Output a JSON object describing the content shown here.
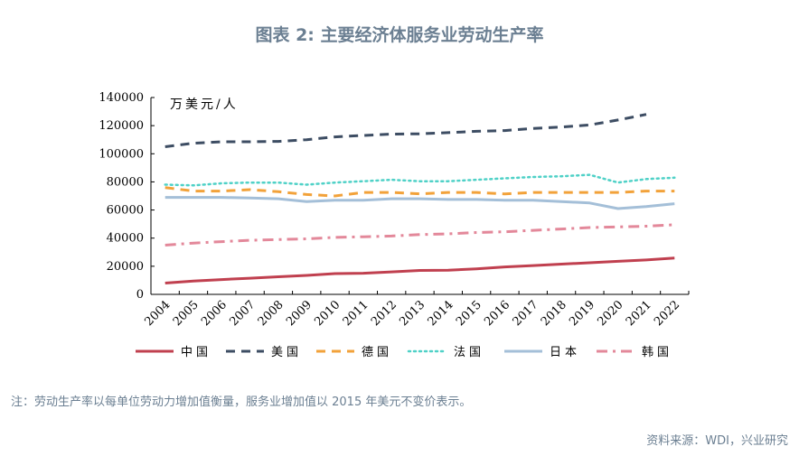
{
  "title": "图表 2:  主要经济体服务业劳动生产率",
  "note": "注：劳动生产率以每单位劳动力增加值衡量，服务业增加值以 2015 年美元不变价表示。",
  "source": "资料来源：WDI，兴业研究",
  "chart_data": {
    "type": "line",
    "unit_label": "万美元/人",
    "x": [
      "2004",
      "2005",
      "2006",
      "2007",
      "2008",
      "2009",
      "2010",
      "2011",
      "2012",
      "2013",
      "2014",
      "2015",
      "2016",
      "2017",
      "2018",
      "2019",
      "2020",
      "2021",
      "2022"
    ],
    "ylim": [
      0,
      140000
    ],
    "yticks": [
      0,
      20000,
      40000,
      60000,
      80000,
      100000,
      120000,
      140000
    ],
    "yticklabels": [
      "0",
      "20000",
      "40000",
      "60000",
      "80000",
      "100000",
      "120000",
      "140000"
    ],
    "legend_position": "bottom",
    "series": [
      {
        "name": "中国",
        "color": "#c0404f",
        "dash": "solid",
        "values": [
          8000,
          9500,
          10500,
          11500,
          12500,
          13500,
          14800,
          15000,
          16000,
          17000,
          17200,
          18200,
          19500,
          20500,
          21500,
          22500,
          23500,
          24500,
          25800
        ]
      },
      {
        "name": "美国",
        "color": "#3d4d63",
        "dash": "dashed",
        "values": [
          105000,
          107500,
          108500,
          108500,
          108800,
          110000,
          112000,
          113000,
          114000,
          114200,
          115000,
          116000,
          116500,
          118000,
          119000,
          120500,
          124000,
          128000,
          null
        ]
      },
      {
        "name": "德国",
        "color": "#f2a23a",
        "dash": "dashed",
        "values": [
          76000,
          73500,
          73500,
          74500,
          73000,
          71000,
          70000,
          72500,
          72500,
          71500,
          72500,
          72500,
          71500,
          72500,
          72500,
          72500,
          72500,
          73500,
          73500
        ]
      },
      {
        "name": "法国",
        "color": "#4fd1c7",
        "dash": "dotted",
        "values": [
          78000,
          77500,
          79000,
          79500,
          79500,
          78000,
          79500,
          80500,
          81500,
          80500,
          80500,
          81500,
          82500,
          83500,
          84000,
          85000,
          79500,
          82000,
          83000
        ]
      },
      {
        "name": "日本",
        "color": "#a4bfd8",
        "dash": "solid",
        "values": [
          69000,
          69000,
          69000,
          68500,
          68000,
          66000,
          67000,
          67000,
          68000,
          68000,
          67500,
          67500,
          67000,
          67000,
          66000,
          65000,
          61000,
          62500,
          64500
        ]
      },
      {
        "name": "韩国",
        "color": "#e3889a",
        "dash": "dashdot",
        "values": [
          35000,
          36500,
          37500,
          38500,
          39000,
          39500,
          40500,
          41000,
          41500,
          42500,
          43000,
          44000,
          44500,
          45500,
          46500,
          47500,
          48000,
          48500,
          49500
        ]
      }
    ]
  }
}
